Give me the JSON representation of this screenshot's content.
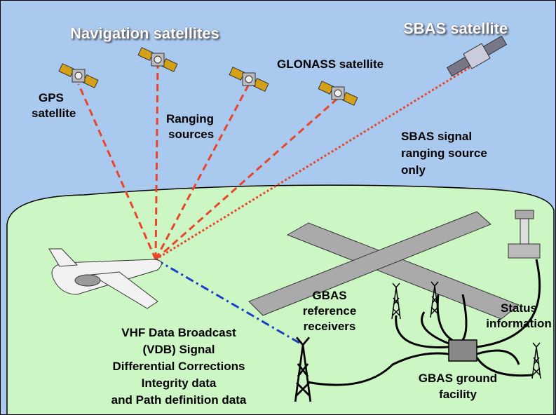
{
  "title_left": "Navigation satellites",
  "title_right": "SBAS satellite",
  "labels": {
    "gps": [
      "GPS",
      "satellite"
    ],
    "glonass": [
      "GLONASS satellite"
    ],
    "ranging": [
      "Ranging",
      "sources"
    ],
    "sbas_signal": [
      "SBAS signal",
      "ranging source",
      "only"
    ],
    "gbas_receivers": [
      "GBAS",
      "reference",
      "receivers"
    ],
    "status": [
      "Status",
      "information"
    ],
    "vdb": [
      "VHF Data Broadcast",
      "(VDB) Signal",
      "Differential Corrections",
      "Integrity data",
      "and Path definition data"
    ],
    "facility": [
      "GBAS ground",
      "facility"
    ]
  }
}
